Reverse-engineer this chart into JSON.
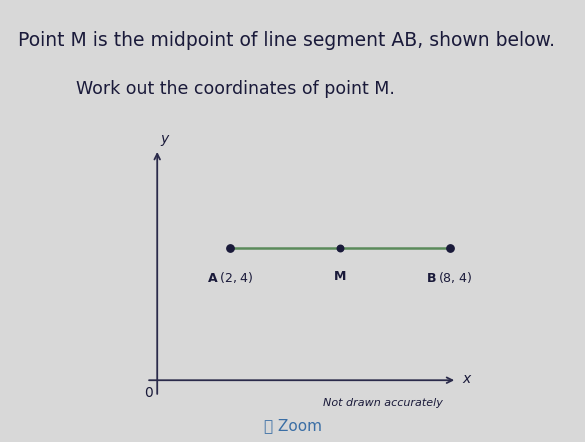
{
  "title_line1": "Point M is the midpoint of line segment AB, shown below.",
  "title_line2": "Work out the coordinates of point M.",
  "point_A": [
    2,
    4
  ],
  "point_B": [
    8,
    4
  ],
  "point_M": [
    5,
    4
  ],
  "label_A": "A (2, 4)",
  "label_B": "B (8, 4)",
  "label_M": "M",
  "label_origin": "0",
  "label_x_axis": "x",
  "label_y_axis": "y",
  "note": "Not drawn accurately",
  "zoom_label": "Zoom",
  "bg_color": "#d8d8d8",
  "line_color": "#5a8a5a",
  "axis_color": "#2a2a4a",
  "text_color": "#1a1a3a",
  "dot_color": "#1a1a3a",
  "title_fontsize": 13.5,
  "subtitle_fontsize": 12.5,
  "axis_label_fontsize": 10,
  "point_label_fontsize": 9,
  "note_fontsize": 8
}
